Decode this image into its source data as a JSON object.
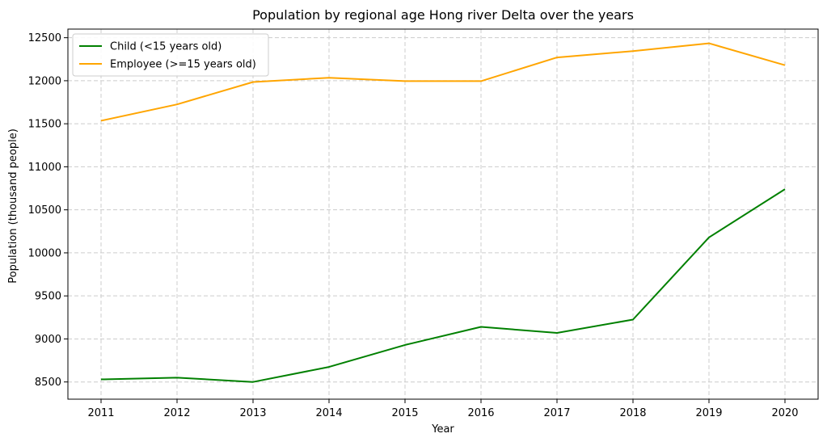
{
  "chart_data": {
    "type": "line",
    "title": "Population by regional age Hong river Delta over the years",
    "xlabel": "Year",
    "ylabel": "Population (thousand people)",
    "x": [
      "2011",
      "2012",
      "2013",
      "2014",
      "2015",
      "2016",
      "2017",
      "2018",
      "2019",
      "2020"
    ],
    "ylim": [
      8300,
      12600
    ],
    "yticks": [
      8500,
      9000,
      9500,
      10000,
      10500,
      11000,
      11500,
      12000,
      12500
    ],
    "grid": true,
    "legend_position": "top-left",
    "series": [
      {
        "name": "Child (<15 years old)",
        "color": "#008000",
        "values": [
          8530,
          8550,
          8500,
          8675,
          8930,
          9140,
          9070,
          9225,
          10180,
          10740
        ]
      },
      {
        "name": "Employee (>=15 years old)",
        "color": "#ffa500",
        "values": [
          11535,
          11725,
          11985,
          12035,
          11995,
          11995,
          12270,
          12345,
          12435,
          12180
        ]
      }
    ]
  }
}
